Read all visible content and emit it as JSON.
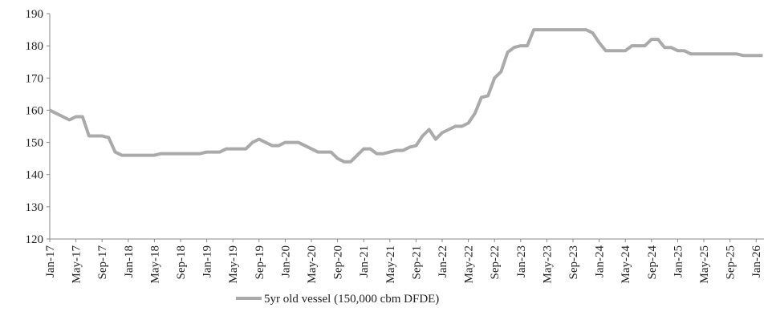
{
  "chart_data": {
    "type": "line",
    "categories": [
      "Jan-17",
      null,
      null,
      null,
      "May-17",
      null,
      null,
      null,
      "Sep-17",
      null,
      null,
      null,
      "Jan-18",
      null,
      null,
      null,
      "May-18",
      null,
      null,
      null,
      "Sep-18",
      null,
      null,
      null,
      "Jan-19",
      null,
      null,
      null,
      "May-19",
      null,
      null,
      null,
      "Sep-19",
      null,
      null,
      null,
      "Jan-20",
      null,
      null,
      null,
      "May-20",
      null,
      null,
      null,
      "Sep-20",
      null,
      null,
      null,
      "Jan-21",
      null,
      null,
      null,
      "May-21",
      null,
      null,
      null,
      "Sep-21",
      null,
      null,
      null,
      "Jan-22",
      null,
      null,
      null,
      "May-22",
      null,
      null,
      null,
      "Sep-22",
      null,
      null,
      null,
      "Jan-23",
      null,
      null,
      null,
      "May-23",
      null,
      null,
      null,
      "Sep-23",
      null,
      null,
      null,
      "Jan-24",
      null,
      null,
      null,
      "May-24",
      null,
      null,
      null,
      "Sep-24",
      null,
      null,
      null,
      "Jan-25",
      null,
      null,
      null,
      "May-25",
      null,
      null,
      null,
      "Sep-25",
      null,
      null,
      null,
      "Jan-26",
      null
    ],
    "series": [
      {
        "name": "5yr old vessel (150,000 cbm DFDE)",
        "color": "#aaaaaa",
        "values": [
          160,
          159,
          158,
          157,
          158,
          158,
          152,
          152,
          152,
          151.5,
          147,
          146,
          146,
          146,
          146,
          146,
          146,
          146.5,
          146.5,
          146.5,
          146.5,
          146.5,
          146.5,
          146.5,
          147,
          147,
          147,
          148,
          148,
          148,
          148,
          150,
          151,
          150,
          149,
          149,
          150,
          150,
          150,
          149,
          148,
          147,
          147,
          147,
          145,
          144,
          144,
          146,
          148,
          148,
          146.5,
          146.5,
          147,
          147.5,
          147.5,
          148.5,
          149,
          152,
          154,
          151,
          153,
          154,
          155,
          155,
          156,
          159,
          164,
          164.5,
          170,
          172,
          178,
          179.5,
          180,
          180,
          185,
          185,
          185,
          185,
          185,
          185,
          185,
          185,
          185,
          184,
          181,
          178.5,
          178.5,
          178.5,
          178.5,
          180,
          180,
          180,
          182,
          182,
          179.5,
          179.5,
          178.5,
          178.5,
          177.5,
          177.5,
          177.5,
          177.5,
          177.5,
          177.5,
          177.5,
          177.5,
          177,
          177,
          177,
          177
        ]
      }
    ],
    "ylim": [
      120,
      190
    ],
    "yticks": [
      120,
      130,
      140,
      150,
      160,
      170,
      180,
      190
    ]
  }
}
